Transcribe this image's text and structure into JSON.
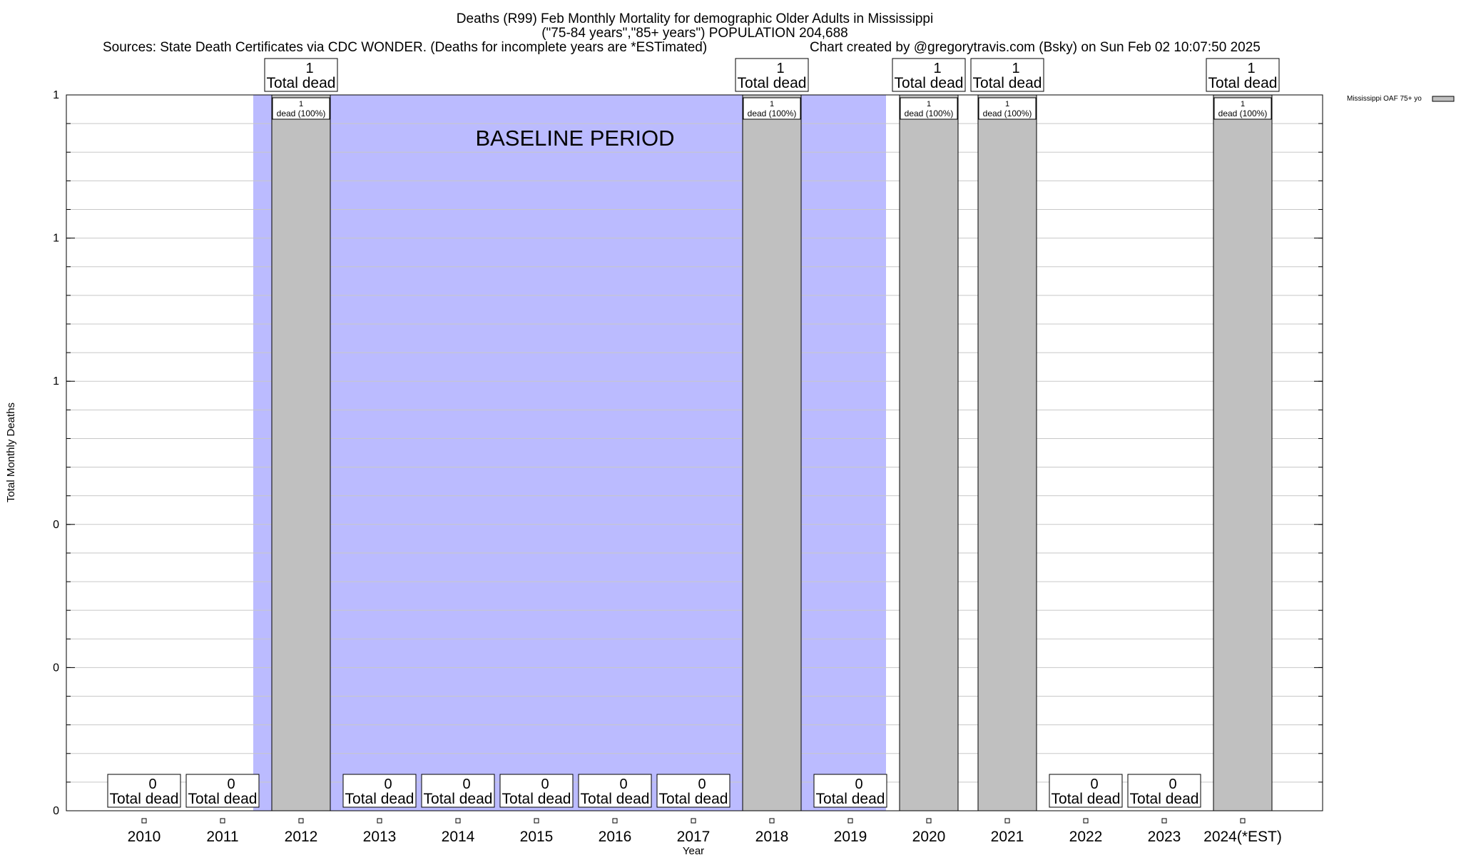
{
  "header": {
    "title_line1": "Deaths (R99) Feb Monthly Mortality for demographic Older Adults in Mississippi",
    "title_line2": "(\"75-84 years\",\"85+ years\") POPULATION 204,688",
    "sources": "Sources: State Death Certificates via CDC WONDER. (Deaths for incomplete years are *ESTimated)",
    "credit": "Chart created by @gregorytravis.com (Bsky) on Sun Feb 02 10:07:50 2025"
  },
  "annotation": {
    "baseline_label": "BASELINE PERIOD"
  },
  "legend": {
    "label": "Mississippi OAF 75+ yo"
  },
  "colors": {
    "bar": "#c0c0c0",
    "baseline": "#bbbbff",
    "grid": "#c8c8c8"
  },
  "chart_data": {
    "type": "bar",
    "title": "Deaths (R99) Feb Monthly Mortality for demographic Older Adults in Mississippi",
    "xlabel": "Year",
    "ylabel": "Total Monthly Deaths",
    "ylim": [
      0,
      1
    ],
    "y_tick_labels": [
      "0",
      "0",
      "0",
      "1",
      "1",
      "1"
    ],
    "grid": true,
    "legend_position": "top-right",
    "baseline_period": [
      "2012",
      "2019"
    ],
    "categories": [
      "2010",
      "2011",
      "2012",
      "2013",
      "2014",
      "2015",
      "2016",
      "2017",
      "2018",
      "2019",
      "2020",
      "2021",
      "2022",
      "2023",
      "2024(*EST)"
    ],
    "series": [
      {
        "name": "Mississippi OAF 75+ yo",
        "values": [
          0,
          0,
          1,
          0,
          0,
          0,
          0,
          0,
          1,
          0,
          1,
          1,
          0,
          0,
          1
        ]
      }
    ],
    "total_label_numbers": [
      "0",
      "0",
      "1",
      "0",
      "0",
      "0",
      "0",
      "0",
      "1",
      "0",
      "1",
      "1",
      "0",
      "0",
      "1"
    ],
    "total_label_text": "Total dead",
    "bar_label_count": "1",
    "bar_label_text": "dead (100%)"
  }
}
